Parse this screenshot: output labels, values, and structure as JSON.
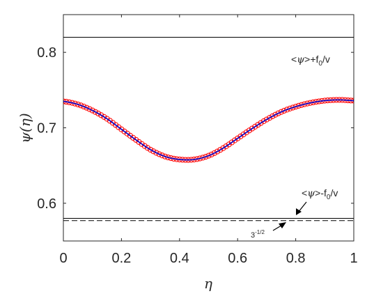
{
  "chart_data": {
    "type": "line",
    "xlabel": "η",
    "ylabel": "ψ(η)",
    "xlim": [
      0,
      1
    ],
    "ylim": [
      0.55,
      0.85
    ],
    "xticks": [
      0,
      0.2,
      0.4,
      0.6,
      0.8,
      1
    ],
    "xtick_labels": [
      "0",
      "0.2",
      "0.4",
      "0.6",
      "0.8",
      "1"
    ],
    "yticks": [
      0.6,
      0.7,
      0.8
    ],
    "ytick_labels": [
      "0.6",
      "0.7",
      "0.8"
    ],
    "grid": false,
    "colors": {
      "line": "#0000cc",
      "markers": "#ff0000",
      "reference": "#000000",
      "axes": "#262626"
    },
    "series": [
      {
        "style": "line",
        "x": [
          0,
          0.05,
          0.1,
          0.15,
          0.2,
          0.25,
          0.3,
          0.35,
          0.4,
          0.45,
          0.5,
          0.55,
          0.6,
          0.65,
          0.7,
          0.75,
          0.8,
          0.85,
          0.9,
          0.95,
          1
        ],
        "y": [
          0.735,
          0.731,
          0.723,
          0.712,
          0.698,
          0.684,
          0.671,
          0.662,
          0.658,
          0.658,
          0.663,
          0.673,
          0.686,
          0.699,
          0.711,
          0.721,
          0.728,
          0.733,
          0.736,
          0.737,
          0.736
        ]
      },
      {
        "style": "markers",
        "marker": "o",
        "x": [
          0,
          0.05,
          0.1,
          0.15,
          0.2,
          0.25,
          0.3,
          0.35,
          0.4,
          0.45,
          0.5,
          0.55,
          0.6,
          0.65,
          0.7,
          0.75,
          0.8,
          0.85,
          0.9,
          0.95,
          1
        ],
        "y": [
          0.735,
          0.731,
          0.723,
          0.712,
          0.698,
          0.684,
          0.671,
          0.662,
          0.658,
          0.658,
          0.663,
          0.673,
          0.686,
          0.699,
          0.711,
          0.721,
          0.728,
          0.733,
          0.736,
          0.737,
          0.736
        ]
      }
    ],
    "reference_lines": [
      {
        "name": "upper-solid",
        "y": 0.82,
        "style": "solid"
      },
      {
        "name": "lower-solid",
        "y": 0.58,
        "style": "solid"
      },
      {
        "name": "lower-dashed",
        "y": 0.577,
        "style": "dashed"
      }
    ],
    "annotations": [
      {
        "name": "upper-label",
        "text": "<ψ>+f0/v",
        "parts": [
          "<",
          "ψ",
          ">+f",
          "0",
          "/v"
        ]
      },
      {
        "name": "lower-label",
        "text": "<ψ>-f0/v",
        "parts": [
          "<",
          "ψ",
          ">-f",
          "0",
          "/v"
        ]
      },
      {
        "name": "dashed-label",
        "text": "3-1/2",
        "parts": [
          "3",
          "-1/2"
        ]
      }
    ]
  }
}
